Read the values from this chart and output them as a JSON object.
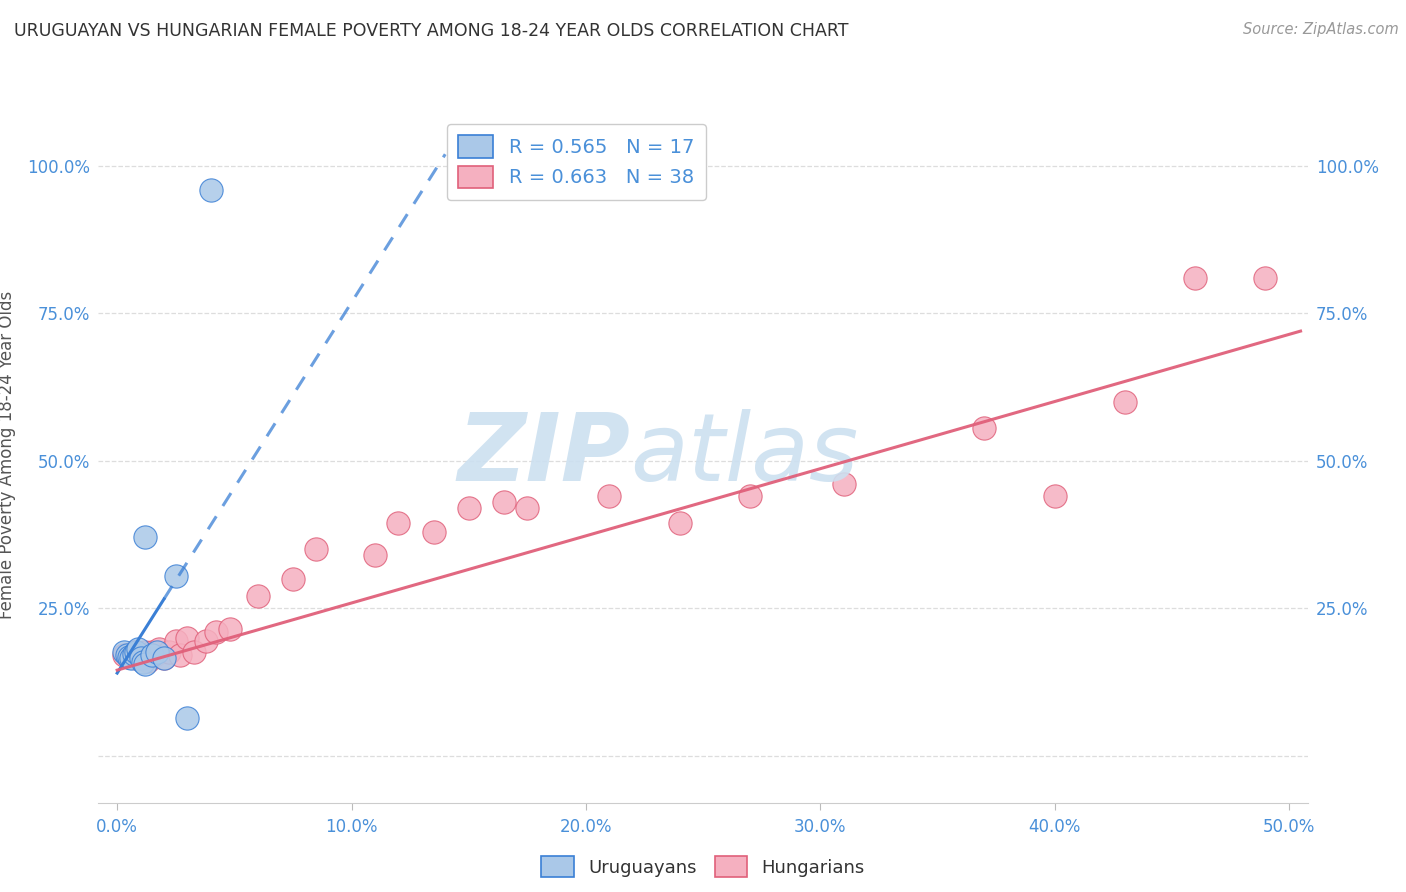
{
  "title": "URUGUAYAN VS HUNGARIAN FEMALE POVERTY AMONG 18-24 YEAR OLDS CORRELATION CHART",
  "source": "Source: ZipAtlas.com",
  "ylabel": "Female Poverty Among 18-24 Year Olds",
  "xlim": [
    -0.008,
    0.508
  ],
  "ylim": [
    -0.08,
    1.1
  ],
  "background_color": "#ffffff",
  "uruguayan_color": "#aac8e8",
  "hungarian_color": "#f5b0c0",
  "trend_uru_color": "#3a7fd5",
  "trend_hun_color": "#e0607a",
  "R_uru": 0.565,
  "N_uru": 17,
  "R_hun": 0.663,
  "N_hun": 38,
  "uruguayan_x": [
    0.003,
    0.004,
    0.005,
    0.006,
    0.007,
    0.008,
    0.009,
    0.01,
    0.011,
    0.012,
    0.015,
    0.017,
    0.02,
    0.025,
    0.03,
    0.04,
    0.012
  ],
  "uruguayan_y": [
    0.175,
    0.17,
    0.168,
    0.165,
    0.172,
    0.175,
    0.18,
    0.165,
    0.158,
    0.155,
    0.17,
    0.175,
    0.165,
    0.305,
    0.063,
    0.96,
    0.37
  ],
  "hungarian_x": [
    0.003,
    0.005,
    0.007,
    0.008,
    0.01,
    0.011,
    0.012,
    0.013,
    0.015,
    0.016,
    0.018,
    0.02,
    0.022,
    0.025,
    0.027,
    0.03,
    0.033,
    0.038,
    0.042,
    0.048,
    0.06,
    0.075,
    0.085,
    0.11,
    0.12,
    0.135,
    0.15,
    0.165,
    0.175,
    0.21,
    0.24,
    0.27,
    0.31,
    0.37,
    0.4,
    0.43,
    0.46,
    0.49
  ],
  "hungarian_y": [
    0.17,
    0.168,
    0.175,
    0.165,
    0.17,
    0.165,
    0.175,
    0.16,
    0.175,
    0.17,
    0.18,
    0.165,
    0.175,
    0.195,
    0.17,
    0.2,
    0.175,
    0.195,
    0.21,
    0.215,
    0.27,
    0.3,
    0.35,
    0.34,
    0.395,
    0.38,
    0.42,
    0.43,
    0.42,
    0.44,
    0.395,
    0.44,
    0.46,
    0.555,
    0.44,
    0.6,
    0.81,
    0.81
  ],
  "uru_trend_x": [
    0.0,
    0.14
  ],
  "uru_trend_y": [
    0.14,
    1.02
  ],
  "hun_trend_x": [
    0.0,
    0.505
  ],
  "hun_trend_y": [
    0.145,
    0.72
  ],
  "xticks": [
    0.0,
    0.1,
    0.2,
    0.3,
    0.4,
    0.5
  ],
  "xtick_labels": [
    "0.0%",
    "10.0%",
    "20.0%",
    "30.0%",
    "40.0%",
    "50.0%"
  ],
  "yticks": [
    0.0,
    0.25,
    0.5,
    0.75,
    1.0
  ],
  "ytick_labels": [
    "",
    "25.0%",
    "50.0%",
    "75.0%",
    "100.0%"
  ],
  "title_color": "#333333",
  "axis_color": "#4a90d9",
  "grid_color": "#dddddd",
  "watermark_color": "#cce0f0"
}
